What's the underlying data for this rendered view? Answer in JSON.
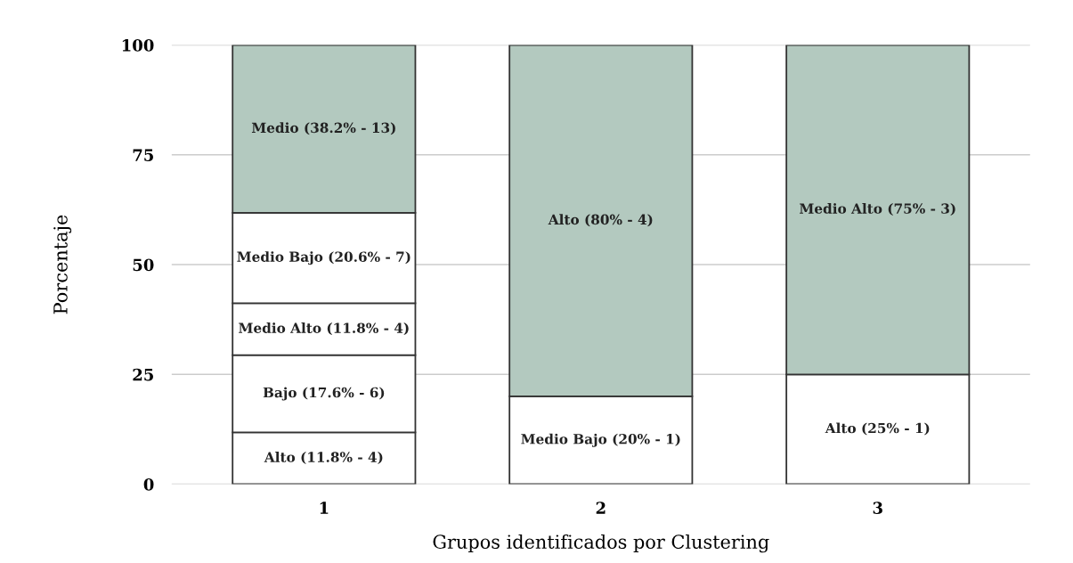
{
  "chart_data": {
    "type": "bar",
    "stacked": true,
    "xlabel": "Grupos identificados por Clustering",
    "ylabel": "Porcentaje",
    "categories": [
      "1",
      "2",
      "3"
    ],
    "series": [
      {
        "colors": [
          "#ffffff",
          "#ffffff",
          "#ffffff"
        ],
        "values": [
          11.8,
          20,
          25
        ],
        "value_labels": [
          "Alto (11.8% - 4)",
          "Medio Bajo (20% - 1)",
          "Alto (25% - 1)"
        ]
      },
      {
        "colors": [
          "#ffffff",
          "#b3c9bf",
          "#b3c9bf"
        ],
        "values": [
          17.6,
          80,
          75
        ],
        "value_labels": [
          "Bajo (17.6% - 6)",
          "Alto (80% - 4)",
          "Medio Alto (75% - 3)"
        ]
      },
      {
        "colors": [
          "#ffffff",
          null,
          null
        ],
        "values": [
          11.8,
          null,
          null
        ],
        "value_labels": [
          "Medio Alto (11.8% - 4)",
          null,
          null
        ]
      },
      {
        "colors": [
          "#ffffff",
          null,
          null
        ],
        "values": [
          20.6,
          null,
          null
        ],
        "value_labels": [
          "Medio Bajo (20.6% - 7)",
          null,
          null
        ]
      },
      {
        "colors": [
          "#b3c9bf",
          null,
          null
        ],
        "values": [
          38.2,
          null,
          null
        ],
        "value_labels": [
          "Medio (38.2% - 13)",
          null,
          null
        ]
      }
    ],
    "ylim": [
      0,
      100
    ],
    "yticks": [
      0,
      25,
      50,
      75,
      100
    ],
    "grid": "y"
  }
}
